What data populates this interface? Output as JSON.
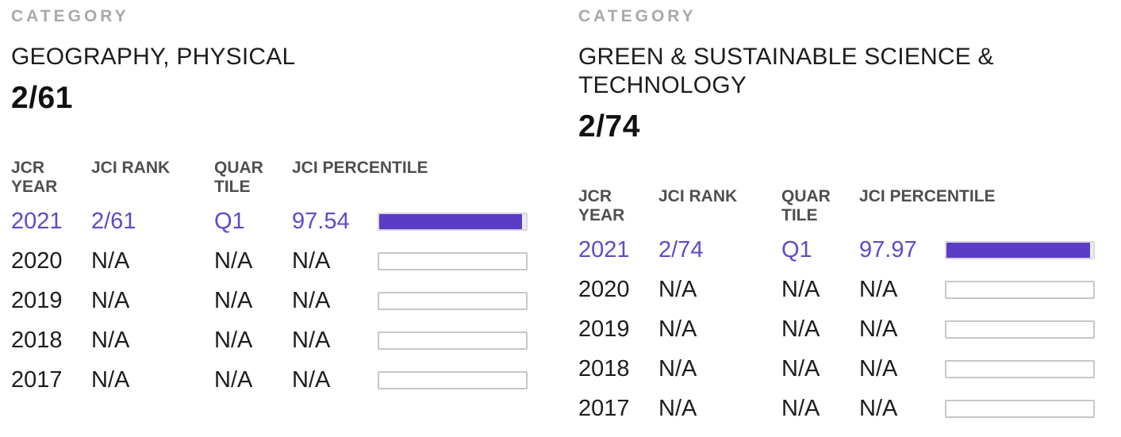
{
  "theme": {
    "accent_text": "#5f49c9",
    "bar_fill": "#5b3cc5",
    "bar_empty_border": "#c7c7c7",
    "label_gray": "#a9a9a9",
    "header_gray": "#4f4f4f"
  },
  "panels": [
    {
      "label": "CATEGORY",
      "title": "GEOGRAPHY, PHYSICAL",
      "rank": "2/61",
      "table": {
        "headers": {
          "year": "JCR YEAR",
          "rank": "JCI RANK",
          "quartile": "QUARTILE",
          "percentile": "JCI PERCENTILE"
        },
        "rows": [
          {
            "year": "2021",
            "rank": "2/61",
            "quartile": "Q1",
            "percentile": "97.54",
            "bar_percent": 97.54,
            "highlight": true
          },
          {
            "year": "2020",
            "rank": "N/A",
            "quartile": "N/A",
            "percentile": "N/A",
            "bar_percent": 0,
            "highlight": false
          },
          {
            "year": "2019",
            "rank": "N/A",
            "quartile": "N/A",
            "percentile": "N/A",
            "bar_percent": 0,
            "highlight": false
          },
          {
            "year": "2018",
            "rank": "N/A",
            "quartile": "N/A",
            "percentile": "N/A",
            "bar_percent": 0,
            "highlight": false
          },
          {
            "year": "2017",
            "rank": "N/A",
            "quartile": "N/A",
            "percentile": "N/A",
            "bar_percent": 0,
            "highlight": false
          }
        ]
      }
    },
    {
      "label": "CATEGORY",
      "title": "GREEN & SUSTAINABLE SCIENCE & TECHNOLOGY",
      "rank": "2/74",
      "table": {
        "headers": {
          "year": "JCR YEAR",
          "rank": "JCI RANK",
          "quartile": "QUARTILE",
          "percentile": "JCI PERCENTILE"
        },
        "rows": [
          {
            "year": "2021",
            "rank": "2/74",
            "quartile": "Q1",
            "percentile": "97.97",
            "bar_percent": 97.97,
            "highlight": true
          },
          {
            "year": "2020",
            "rank": "N/A",
            "quartile": "N/A",
            "percentile": "N/A",
            "bar_percent": 0,
            "highlight": false
          },
          {
            "year": "2019",
            "rank": "N/A",
            "quartile": "N/A",
            "percentile": "N/A",
            "bar_percent": 0,
            "highlight": false
          },
          {
            "year": "2018",
            "rank": "N/A",
            "quartile": "N/A",
            "percentile": "N/A",
            "bar_percent": 0,
            "highlight": false
          },
          {
            "year": "2017",
            "rank": "N/A",
            "quartile": "N/A",
            "percentile": "N/A",
            "bar_percent": 0,
            "highlight": false
          }
        ]
      }
    }
  ]
}
